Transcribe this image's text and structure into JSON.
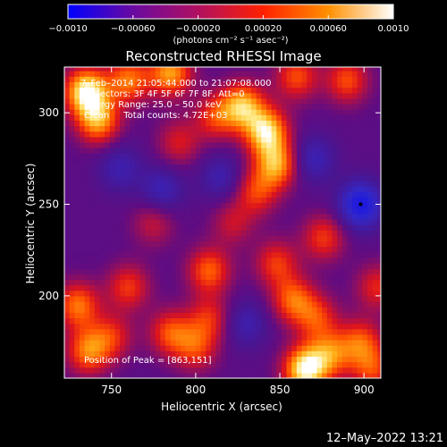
{
  "chart_data": {
    "type": "heatmap",
    "title": "Reconstructed RHESSI Image",
    "xlabel": "Heliocentric X (arcsec)",
    "ylabel": "Heliocentric Y (arcsec)",
    "xlim": [
      722,
      910
    ],
    "ylim": [
      155,
      325
    ],
    "xticks": [
      750,
      800,
      850,
      900
    ],
    "yticks": [
      200,
      250,
      300
    ],
    "colorbar": {
      "range": [
        -0.001,
        0.001
      ],
      "tick_labels": [
        "−0.0010",
        "−0.00060",
        "−0.00020",
        "0.00020",
        "0.00060",
        "0.0010"
      ],
      "tick_values": [
        -0.001,
        -0.0006,
        -0.0002,
        0.0002,
        0.0006,
        0.001
      ],
      "unit": "(photons cm⁻² s⁻¹ asec⁻²)",
      "colors": [
        "#0000ff",
        "#6a0aa0",
        "#b01060",
        "#ff2000",
        "#ff9000",
        "#ffffff"
      ]
    },
    "annotations": {
      "time": "7–Feb–2014 21:05:44.000 to 21:07:08.000",
      "detectors": "Detectors: 3F 4F 5F 6F 7F 8F, Att=0",
      "energy": "Energy Range: 25.0 – 50.0 keV",
      "method": "Clean     Total counts: 4.72E+03",
      "peak": "Position of Peak = [863,151]"
    },
    "peak_position": [
      863,
      151
    ],
    "marker_position": [
      898,
      250
    ],
    "emission_blobs": [
      {
        "x": 735,
        "y": 312,
        "intensity": 0.95
      },
      {
        "x": 742,
        "y": 296,
        "intensity": 0.7
      },
      {
        "x": 760,
        "y": 318,
        "intensity": 0.6
      },
      {
        "x": 785,
        "y": 322,
        "intensity": 0.7
      },
      {
        "x": 828,
        "y": 304,
        "intensity": 0.75
      },
      {
        "x": 842,
        "y": 290,
        "intensity": 0.85
      },
      {
        "x": 848,
        "y": 272,
        "intensity": 0.7
      },
      {
        "x": 836,
        "y": 257,
        "intensity": 0.45
      },
      {
        "x": 860,
        "y": 320,
        "intensity": 0.5
      },
      {
        "x": 890,
        "y": 318,
        "intensity": 0.5
      },
      {
        "x": 812,
        "y": 298,
        "intensity": 0.45
      },
      {
        "x": 790,
        "y": 284,
        "intensity": 0.35
      },
      {
        "x": 808,
        "y": 214,
        "intensity": 0.55
      },
      {
        "x": 760,
        "y": 205,
        "intensity": 0.45
      },
      {
        "x": 730,
        "y": 195,
        "intensity": 0.6
      },
      {
        "x": 736,
        "y": 170,
        "intensity": 0.6
      },
      {
        "x": 750,
        "y": 178,
        "intensity": 0.4
      },
      {
        "x": 785,
        "y": 180,
        "intensity": 0.5
      },
      {
        "x": 800,
        "y": 172,
        "intensity": 0.45
      },
      {
        "x": 808,
        "y": 188,
        "intensity": 0.4
      },
      {
        "x": 848,
        "y": 218,
        "intensity": 0.45
      },
      {
        "x": 858,
        "y": 198,
        "intensity": 0.55
      },
      {
        "x": 872,
        "y": 188,
        "intensity": 0.45
      },
      {
        "x": 865,
        "y": 160,
        "intensity": 0.95
      },
      {
        "x": 880,
        "y": 168,
        "intensity": 0.55
      },
      {
        "x": 898,
        "y": 175,
        "intensity": 0.5
      },
      {
        "x": 905,
        "y": 160,
        "intensity": 0.45
      },
      {
        "x": 876,
        "y": 232,
        "intensity": 0.45
      },
      {
        "x": 908,
        "y": 205,
        "intensity": 0.4
      },
      {
        "x": 775,
        "y": 240,
        "intensity": 0.3
      },
      {
        "x": 822,
        "y": 240,
        "intensity": 0.3
      }
    ],
    "negative_regions": [
      {
        "x": 898,
        "y": 250,
        "intensity": 0.7
      },
      {
        "x": 780,
        "y": 258,
        "intensity": 0.35
      },
      {
        "x": 815,
        "y": 265,
        "intensity": 0.3
      },
      {
        "x": 755,
        "y": 270,
        "intensity": 0.3
      },
      {
        "x": 870,
        "y": 275,
        "intensity": 0.35
      },
      {
        "x": 830,
        "y": 185,
        "intensity": 0.3
      }
    ]
  },
  "footer": {
    "date": "12–May–2022 13:21"
  }
}
